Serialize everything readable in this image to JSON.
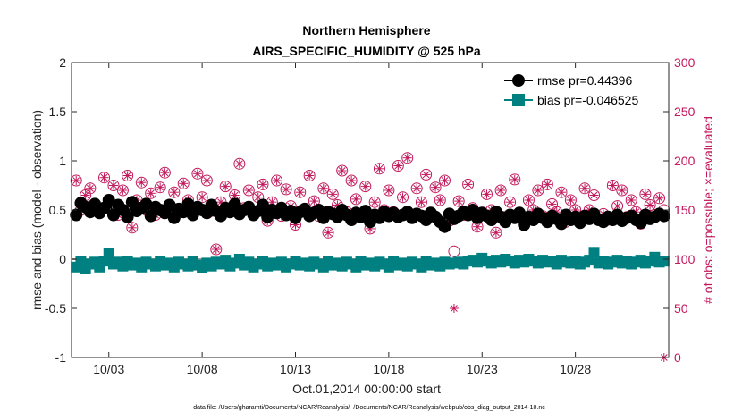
{
  "colors": {
    "rmse": "#000000",
    "bias": "#008080",
    "obs": "#c2185b",
    "zero_line": "#9e9e9e"
  },
  "chart_data": {
    "type": "line",
    "title": "Northern Hemisphere",
    "subtitle": "AIRS_SPECIFIC_HUMIDITY @ 525 hPa",
    "xlabel": "Oct.01,2014 00:00:00 start",
    "ylabel": "rmse and bias (model - observation)",
    "ylabel_right": "# of obs: o=possible; ×=evaluated",
    "footnote": "data file: /Users/gharamti/Documents/NCAR/Reanalysis/~/Documents/NCAR/Reanalysis/webpub/obs_diag_output_2014-10.nc",
    "xlim": [
      1.0,
      33.0
    ],
    "ylim": [
      -1,
      2
    ],
    "ylim_right": [
      0,
      300
    ],
    "xticks": [
      3,
      8,
      13,
      18,
      23,
      28
    ],
    "xtick_labels": [
      "10/03",
      "10/08",
      "10/13",
      "10/18",
      "10/23",
      "10/28"
    ],
    "yticks": [
      -1,
      -0.5,
      0,
      0.5,
      1,
      1.5,
      2
    ],
    "ytick_labels": [
      "-1",
      "-0.5",
      "0",
      "0.5",
      "1",
      "1.5",
      "2"
    ],
    "yticks_right": [
      0,
      50,
      100,
      150,
      200,
      250,
      300
    ],
    "ytick_labels_right": [
      "0",
      "50",
      "100",
      "150",
      "200",
      "250",
      "300"
    ],
    "legend_position": "top-right",
    "legend": [
      "rmse pr=0.44396",
      "bias pr=-0.046525"
    ],
    "series": [
      {
        "name": "rmse",
        "axis": "left",
        "x": [
          1.25,
          1.5,
          1.75,
          2,
          2.25,
          2.5,
          2.75,
          3,
          3.25,
          3.5,
          3.75,
          4,
          4.25,
          4.5,
          4.75,
          5,
          5.25,
          5.5,
          5.75,
          6,
          6.25,
          6.5,
          6.75,
          7,
          7.25,
          7.5,
          7.75,
          8,
          8.25,
          8.5,
          8.75,
          9,
          9.25,
          9.5,
          9.75,
          10,
          10.25,
          10.5,
          10.75,
          11,
          11.25,
          11.5,
          11.75,
          12,
          12.25,
          12.5,
          12.75,
          13,
          13.25,
          13.5,
          13.75,
          14,
          14.25,
          14.5,
          14.75,
          15,
          15.25,
          15.5,
          15.75,
          16,
          16.25,
          16.5,
          16.75,
          17,
          17.25,
          17.5,
          17.75,
          18,
          18.25,
          18.5,
          18.75,
          19,
          19.25,
          19.5,
          19.75,
          20,
          20.25,
          20.5,
          20.75,
          21,
          21.25,
          21.5,
          21.75,
          22,
          22.25,
          22.5,
          22.75,
          23,
          23.25,
          23.5,
          23.75,
          24,
          24.25,
          24.5,
          24.75,
          25,
          25.25,
          25.5,
          25.75,
          26,
          26.25,
          26.5,
          26.75,
          27,
          27.25,
          27.5,
          27.75,
          28,
          28.25,
          28.5,
          28.75,
          29,
          29.25,
          29.5,
          29.75,
          30,
          30.25,
          30.5,
          30.75,
          31,
          31.25,
          31.5,
          31.75,
          32,
          32.25,
          32.5,
          32.75
        ],
        "values": [
          0.45,
          0.57,
          0.53,
          0.48,
          0.56,
          0.47,
          0.52,
          0.6,
          0.45,
          0.55,
          0.5,
          0.43,
          0.58,
          0.49,
          0.52,
          0.56,
          0.44,
          0.53,
          0.5,
          0.47,
          0.55,
          0.42,
          0.51,
          0.48,
          0.56,
          0.45,
          0.53,
          0.5,
          0.47,
          0.55,
          0.49,
          0.44,
          0.52,
          0.48,
          0.56,
          0.46,
          0.5,
          0.53,
          0.45,
          0.49,
          0.55,
          0.43,
          0.5,
          0.47,
          0.52,
          0.45,
          0.49,
          0.42,
          0.48,
          0.51,
          0.44,
          0.47,
          0.5,
          0.42,
          0.48,
          0.46,
          0.43,
          0.5,
          0.45,
          0.4,
          0.47,
          0.43,
          0.49,
          0.38,
          0.45,
          0.42,
          0.48,
          0.44,
          0.47,
          0.43,
          0.45,
          0.48,
          0.42,
          0.46,
          0.44,
          0.4,
          0.47,
          0.43,
          0.38,
          0.33,
          0.46,
          0.41,
          0.44,
          0.48,
          0.45,
          0.5,
          0.42,
          0.47,
          0.44,
          0.4,
          0.48,
          0.43,
          0.38,
          0.45,
          0.42,
          0.47,
          0.35,
          0.43,
          0.4,
          0.46,
          0.42,
          0.38,
          0.44,
          0.41,
          0.36,
          0.45,
          0.4,
          0.43,
          0.37,
          0.44,
          0.41,
          0.46,
          0.4,
          0.38,
          0.43,
          0.4,
          0.45,
          0.39,
          0.42,
          0.44,
          0.4,
          0.37,
          0.45,
          0.41,
          0.43,
          0.46,
          0.44
        ]
      },
      {
        "name": "bias",
        "axis": "left",
        "x": [
          1.25,
          1.5,
          1.75,
          2,
          2.25,
          2.5,
          2.75,
          3,
          3.25,
          3.5,
          3.75,
          4,
          4.25,
          4.5,
          4.75,
          5,
          5.25,
          5.5,
          5.75,
          6,
          6.25,
          6.5,
          6.75,
          7,
          7.25,
          7.5,
          7.75,
          8,
          8.25,
          8.5,
          8.75,
          9,
          9.25,
          9.5,
          9.75,
          10,
          10.25,
          10.5,
          10.75,
          11,
          11.25,
          11.5,
          11.75,
          12,
          12.25,
          12.5,
          12.75,
          13,
          13.25,
          13.5,
          13.75,
          14,
          14.25,
          14.5,
          14.75,
          15,
          15.25,
          15.5,
          15.75,
          16,
          16.25,
          16.5,
          16.75,
          17,
          17.25,
          17.5,
          17.75,
          18,
          18.25,
          18.5,
          18.75,
          19,
          19.25,
          19.5,
          19.75,
          20,
          20.25,
          20.5,
          20.75,
          21,
          21.25,
          21.5,
          21.75,
          22,
          22.25,
          22.5,
          22.75,
          23,
          23.25,
          23.5,
          23.75,
          24,
          24.25,
          24.5,
          24.75,
          25,
          25.25,
          25.5,
          25.75,
          26,
          26.25,
          26.5,
          26.75,
          27,
          27.25,
          27.5,
          27.75,
          28,
          28.25,
          28.5,
          28.75,
          29,
          29.25,
          29.5,
          29.75,
          30,
          30.25,
          30.5,
          30.75,
          31,
          31.25,
          31.5,
          31.75,
          32,
          32.25,
          32.5,
          32.75
        ],
        "values": [
          -0.08,
          -0.02,
          -0.1,
          -0.05,
          -0.03,
          -0.08,
          -0.02,
          0.06,
          -0.05,
          -0.03,
          -0.07,
          -0.02,
          -0.06,
          -0.04,
          -0.08,
          -0.03,
          -0.05,
          -0.07,
          -0.02,
          -0.06,
          -0.04,
          -0.08,
          -0.03,
          -0.05,
          -0.07,
          -0.02,
          -0.06,
          -0.09,
          -0.04,
          -0.07,
          -0.03,
          -0.05,
          -0.01,
          -0.07,
          -0.04,
          0.0,
          -0.06,
          -0.03,
          -0.08,
          -0.05,
          -0.02,
          -0.07,
          -0.04,
          -0.06,
          -0.03,
          -0.08,
          -0.05,
          -0.02,
          -0.06,
          -0.04,
          -0.07,
          -0.03,
          -0.05,
          -0.08,
          -0.02,
          -0.06,
          -0.04,
          -0.07,
          -0.03,
          -0.05,
          -0.08,
          -0.02,
          -0.06,
          -0.04,
          -0.07,
          -0.03,
          -0.05,
          -0.08,
          -0.02,
          -0.06,
          -0.04,
          -0.07,
          -0.03,
          -0.05,
          -0.08,
          -0.02,
          -0.06,
          -0.04,
          -0.07,
          -0.03,
          -0.05,
          -0.04,
          -0.03,
          -0.05,
          -0.02,
          -0.01,
          -0.03,
          0.01,
          -0.02,
          -0.04,
          -0.01,
          -0.03,
          0.0,
          -0.02,
          -0.04,
          -0.01,
          -0.03,
          0.0,
          -0.02,
          -0.04,
          -0.01,
          -0.03,
          -0.02,
          -0.05,
          -0.01,
          -0.03,
          -0.04,
          -0.02,
          -0.05,
          -0.03,
          -0.01,
          0.07,
          -0.04,
          -0.02,
          -0.05,
          -0.03,
          -0.01,
          -0.04,
          -0.02,
          -0.05,
          -0.03,
          -0.01,
          -0.04,
          -0.02,
          0.02,
          -0.03,
          -0.02
        ]
      },
      {
        "name": "obs possible",
        "axis": "right",
        "marker": "circle",
        "x": [
          1.25,
          1.5,
          1.75,
          2,
          2.25,
          2.5,
          2.75,
          3,
          3.25,
          3.5,
          3.75,
          4,
          4.25,
          4.5,
          4.75,
          5,
          5.25,
          5.5,
          5.75,
          6,
          6.25,
          6.5,
          6.75,
          7,
          7.25,
          7.5,
          7.75,
          8,
          8.25,
          8.5,
          8.75,
          9,
          9.25,
          9.5,
          9.75,
          10,
          10.25,
          10.5,
          10.75,
          11,
          11.25,
          11.5,
          11.75,
          12,
          12.25,
          12.5,
          12.75,
          13,
          13.25,
          13.5,
          13.75,
          14,
          14.25,
          14.5,
          14.75,
          15,
          15.25,
          15.5,
          15.75,
          16,
          16.25,
          16.5,
          16.75,
          17,
          17.25,
          17.5,
          17.75,
          18,
          18.25,
          18.5,
          18.75,
          19,
          19.25,
          19.5,
          19.75,
          20,
          20.25,
          20.5,
          20.75,
          21,
          21.25,
          21.5,
          21.75,
          22,
          22.25,
          22.5,
          22.75,
          23,
          23.25,
          23.5,
          23.75,
          24,
          24.25,
          24.5,
          24.75,
          25,
          25.25,
          25.5,
          25.75,
          26,
          26.25,
          26.5,
          26.75,
          27,
          27.25,
          27.5,
          27.75,
          28,
          28.25,
          28.5,
          28.75,
          29,
          29.25,
          29.5,
          29.75,
          30,
          30.25,
          30.5,
          30.75,
          31,
          31.25,
          31.5,
          31.75,
          32,
          32.25,
          32.5,
          32.75
        ],
        "values": [
          180,
          150,
          165,
          172,
          155,
          148,
          183,
          160,
          175,
          145,
          170,
          185,
          132,
          160,
          178,
          150,
          167,
          145,
          173,
          188,
          152,
          168,
          147,
          177,
          160,
          146,
          187,
          163,
          180,
          149,
          110,
          158,
          174,
          148,
          165,
          197,
          152,
          170,
          146,
          163,
          176,
          139,
          158,
          180,
          144,
          171,
          154,
          135,
          168,
          149,
          185,
          159,
          144,
          172,
          127,
          166,
          155,
          190,
          148,
          180,
          161,
          145,
          174,
          131,
          158,
          192,
          150,
          170,
          148,
          195,
          163,
          203,
          144,
          172,
          158,
          186,
          146,
          173,
          160,
          180,
          139,
          108,
          159,
          145,
          176,
          152,
          133,
          147,
          166,
          150,
          127,
          170,
          143,
          158,
          181,
          146,
          138,
          160,
          150,
          170,
          144,
          176,
          156,
          148,
          168,
          138,
          160,
          150,
          143,
          172,
          150,
          165,
          140,
          146,
          140,
          175,
          154,
          170,
          143,
          160,
          148,
          136,
          166,
          155,
          145,
          162,
          150
        ]
      },
      {
        "name": "obs evaluated",
        "axis": "right",
        "marker": "asterisk",
        "x": [
          1.25,
          1.5,
          1.75,
          2,
          2.25,
          2.5,
          2.75,
          3,
          3.25,
          3.5,
          3.75,
          4,
          4.25,
          4.5,
          4.75,
          5,
          5.25,
          5.5,
          5.75,
          6,
          6.25,
          6.5,
          6.75,
          7,
          7.25,
          7.5,
          7.75,
          8,
          8.25,
          8.5,
          8.75,
          9,
          9.25,
          9.5,
          9.75,
          10,
          10.25,
          10.5,
          10.75,
          11,
          11.25,
          11.5,
          11.75,
          12,
          12.25,
          12.5,
          12.75,
          13,
          13.25,
          13.5,
          13.75,
          14,
          14.25,
          14.5,
          14.75,
          15,
          15.25,
          15.5,
          15.75,
          16,
          16.25,
          16.5,
          16.75,
          17,
          17.25,
          17.5,
          17.75,
          18,
          18.25,
          18.5,
          18.75,
          19,
          19.25,
          19.5,
          19.75,
          20,
          20.25,
          20.5,
          20.75,
          21,
          21.25,
          21.5,
          21.75,
          22,
          22.25,
          22.5,
          22.75,
          23,
          23.25,
          23.5,
          23.75,
          24,
          24.25,
          24.5,
          24.75,
          25,
          25.25,
          25.5,
          25.75,
          26,
          26.25,
          26.5,
          26.75,
          27,
          27.25,
          27.5,
          27.75,
          28,
          28.25,
          28.5,
          28.75,
          29,
          29.25,
          29.5,
          29.75,
          30,
          30.25,
          30.5,
          30.75,
          31,
          31.25,
          31.5,
          31.75,
          32,
          32.25,
          32.5,
          32.75
        ],
        "values": [
          180,
          150,
          165,
          172,
          155,
          148,
          183,
          160,
          175,
          145,
          170,
          185,
          132,
          160,
          178,
          150,
          167,
          145,
          173,
          188,
          152,
          168,
          147,
          177,
          160,
          146,
          187,
          163,
          180,
          149,
          110,
          158,
          174,
          148,
          165,
          197,
          152,
          170,
          146,
          163,
          176,
          139,
          158,
          180,
          144,
          171,
          154,
          135,
          168,
          149,
          185,
          159,
          144,
          172,
          127,
          166,
          155,
          190,
          148,
          180,
          161,
          145,
          174,
          131,
          158,
          192,
          150,
          170,
          148,
          195,
          163,
          203,
          144,
          172,
          158,
          186,
          146,
          173,
          160,
          180,
          139,
          50,
          159,
          145,
          176,
          152,
          133,
          147,
          166,
          150,
          127,
          170,
          143,
          158,
          181,
          146,
          138,
          160,
          150,
          170,
          144,
          176,
          156,
          148,
          168,
          138,
          160,
          150,
          143,
          172,
          150,
          165,
          140,
          146,
          140,
          175,
          154,
          170,
          143,
          160,
          148,
          136,
          166,
          155,
          145,
          162,
          0
        ]
      }
    ]
  }
}
